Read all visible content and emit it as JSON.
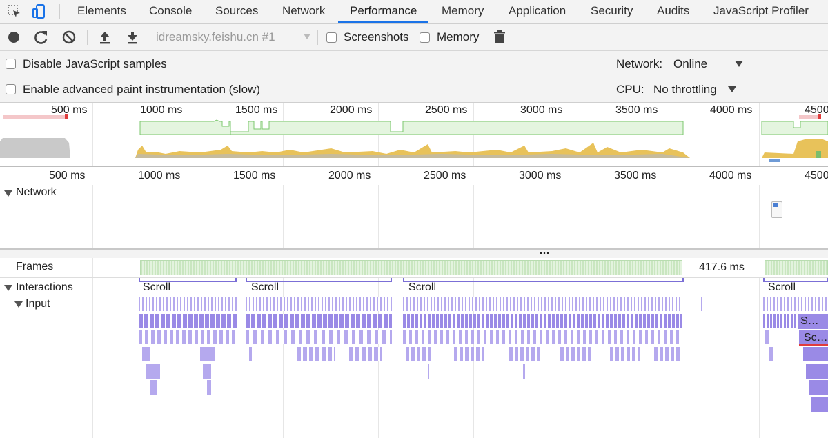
{
  "tabs": [
    "Elements",
    "Console",
    "Sources",
    "Network",
    "Performance",
    "Memory",
    "Application",
    "Security",
    "Audits",
    "JavaScript Profiler"
  ],
  "active_tab": "Performance",
  "toolbar": {
    "target": "idreamsky.feishu.cn #1",
    "screenshots_label": "Screenshots",
    "memory_label": "Memory"
  },
  "settings": {
    "disable_js_samples": "Disable JavaScript samples",
    "advanced_paint": "Enable advanced paint instrumentation (slow)",
    "network_label": "Network:",
    "network_value": "Online",
    "cpu_label": "CPU:",
    "cpu_value": "No throttling"
  },
  "overview_ticks": [
    "500 ms",
    "1000 ms",
    "1500 ms",
    "2000 ms",
    "2500 ms",
    "3000 ms",
    "3500 ms",
    "4000 ms",
    "4500"
  ],
  "ruler_ticks": [
    "500 ms",
    "1000 ms",
    "1500 ms",
    "2000 ms",
    "2500 ms",
    "3000 ms",
    "3500 ms",
    "4000 ms",
    "4500"
  ],
  "tracks": {
    "network": "Network",
    "frames": "Frames",
    "frame_time": "417.6 ms",
    "interactions": "Interactions",
    "input": "Input",
    "scroll": "Scroll",
    "s_short": "S…",
    "sc_short": "Sc…",
    "divider_glyph": "…"
  },
  "colors": {
    "accent": "#1a73e8",
    "fps_green": "#8fd481",
    "cpu_yellow": "#e8c25a",
    "interaction_purple": "#b5a9ee",
    "scroll_bracket": "#7b6fd6"
  }
}
